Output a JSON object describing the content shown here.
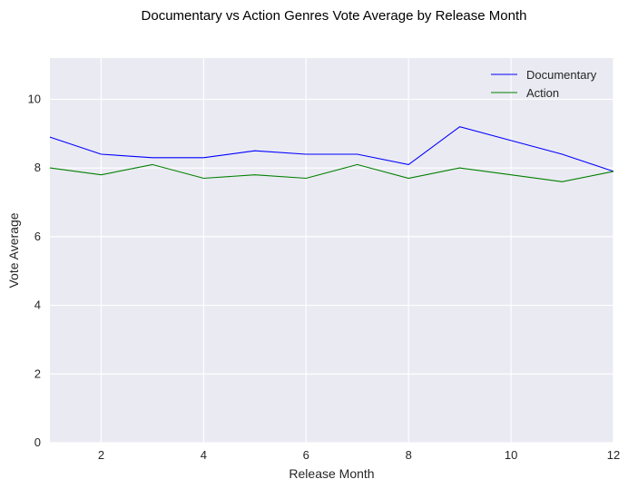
{
  "chart_data": {
    "type": "line",
    "title": "Documentary vs Action Genres Vote Average by Release Month",
    "xlabel": "Release Month",
    "ylabel": "Vote Average",
    "x": [
      1,
      2,
      3,
      4,
      5,
      6,
      7,
      8,
      9,
      10,
      11,
      12
    ],
    "xlim": [
      1,
      12
    ],
    "ylim": [
      0,
      11.2
    ],
    "xticks": [
      2,
      4,
      6,
      8,
      10,
      12
    ],
    "yticks": [
      0,
      2,
      4,
      6,
      8,
      10
    ],
    "grid": true,
    "legend_position": "top-right",
    "background": "#eaeaf2",
    "series": [
      {
        "name": "Documentary",
        "color": "#0000ff",
        "values": [
          8.9,
          8.4,
          8.3,
          8.3,
          8.5,
          8.4,
          8.4,
          8.1,
          9.2,
          8.8,
          8.4,
          7.9
        ]
      },
      {
        "name": "Action",
        "color": "#008000",
        "values": [
          8.0,
          7.8,
          8.1,
          7.7,
          7.8,
          7.7,
          8.1,
          7.7,
          8.0,
          7.8,
          7.6,
          7.9
        ]
      }
    ]
  }
}
